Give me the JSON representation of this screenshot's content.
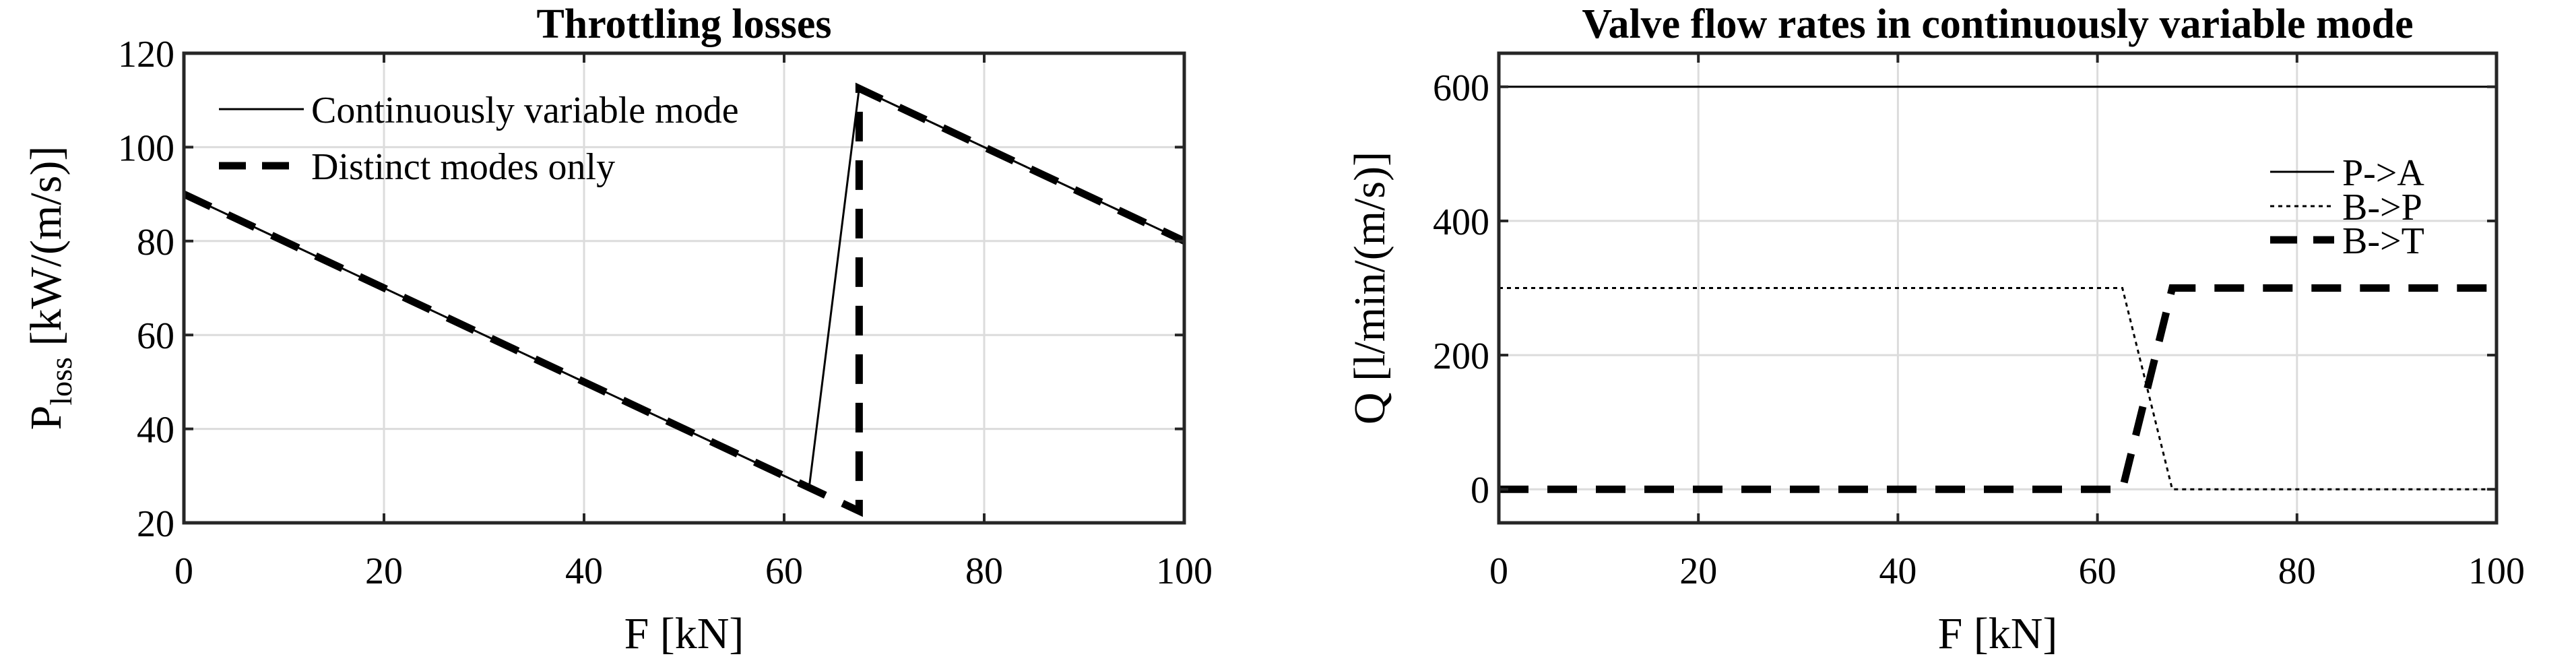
{
  "chart_data": [
    {
      "type": "line",
      "title": "Throttling losses",
      "xlabel": "F [kN]",
      "ylabel_main": "P",
      "ylabel_sub": "loss",
      "ylabel_unit": " [kW/(m/s)]",
      "xlim": [
        0,
        100
      ],
      "ylim": [
        20,
        120
      ],
      "xticks": [
        0,
        20,
        40,
        60,
        80,
        100
      ],
      "yticks": [
        20,
        40,
        60,
        80,
        100,
        120
      ],
      "grid": true,
      "legend_position": "top-left",
      "series": [
        {
          "name": "Continuously variable mode",
          "style": "solid-thin",
          "x": [
            0,
            62.5,
            67.5,
            100
          ],
          "y": [
            90,
            27.5,
            112.5,
            80
          ]
        },
        {
          "name": "Distinct modes only",
          "style": "dashed-thick",
          "x": [
            0,
            67.5,
            67.5,
            100
          ],
          "y": [
            90,
            22.5,
            112.5,
            80
          ]
        }
      ]
    },
    {
      "type": "line",
      "title": "Valve flow rates in continuously variable mode",
      "xlabel": "F [kN]",
      "ylabel": "Q [l/min/(m/s)]",
      "xlim": [
        0,
        100
      ],
      "ylim": [
        -50,
        650
      ],
      "xticks": [
        0,
        20,
        40,
        60,
        80,
        100
      ],
      "yticks": [
        0,
        200,
        400,
        600
      ],
      "grid": true,
      "legend_position": "top-right",
      "series": [
        {
          "name": "P->A",
          "style": "solid-thin",
          "x": [
            0,
            100
          ],
          "y": [
            600,
            600
          ]
        },
        {
          "name": "B->P",
          "style": "dotted-thin",
          "x": [
            0,
            62.5,
            67.5,
            100
          ],
          "y": [
            300,
            300,
            0,
            0
          ]
        },
        {
          "name": "B->T",
          "style": "dashed-thick",
          "x": [
            0,
            62.5,
            67.5,
            100
          ],
          "y": [
            0,
            0,
            300,
            300
          ]
        }
      ]
    }
  ]
}
